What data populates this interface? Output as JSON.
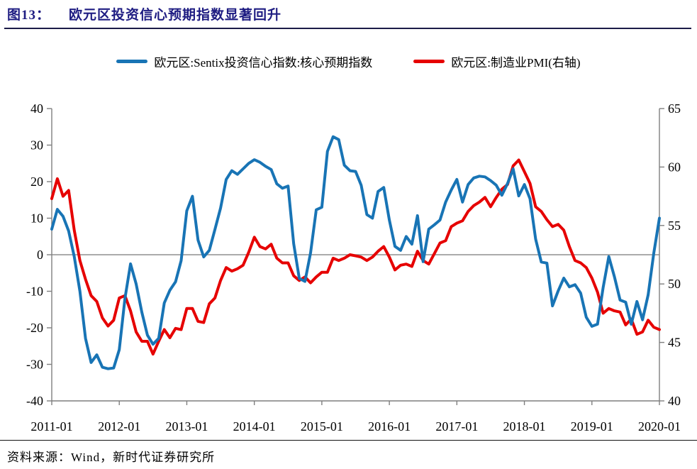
{
  "header": {
    "figure_label": "图13：",
    "title": "欧元区投资信心预期指数显著回升"
  },
  "legend": [
    {
      "label": "欧元区:Sentix投资信心指数:核心预期指数",
      "color": "#1874b5"
    },
    {
      "label": "欧元区:制造业PMI(右轴)",
      "color": "#e60000"
    }
  ],
  "footer": {
    "source": "资料来源：Wind，新时代证券研究所"
  },
  "chart_data": {
    "type": "line",
    "x_interval": "monthly",
    "x_start": "2011-01",
    "x_end": "2020-01",
    "x_tick_labels": [
      "2011-01",
      "2012-01",
      "2013-01",
      "2014-01",
      "2015-01",
      "2016-01",
      "2017-01",
      "2018-01",
      "2019-01",
      "2020-01"
    ],
    "left_axis": {
      "min": -40,
      "max": 40,
      "ticks": [
        40,
        30,
        20,
        10,
        0,
        -10,
        -20,
        -30,
        -40
      ]
    },
    "right_axis": {
      "min": 40,
      "max": 65,
      "ticks": [
        65,
        60,
        55,
        50,
        45,
        40
      ]
    },
    "zero_line_left_value": 0,
    "grid": "zero-line-only",
    "legend_position": "top",
    "axis_color": "#7f7f7f",
    "zero_line_color": "#8f8f8f",
    "series": [
      {
        "name": "欧元区:Sentix投资信心指数:核心预期指数",
        "axis": "left",
        "color": "#1874b5",
        "values": [
          7,
          12.4,
          10.5,
          6.5,
          -0.5,
          -10,
          -22.9,
          -29.5,
          -27.4,
          -30.8,
          -31.2,
          -31,
          -26,
          -12,
          -2.5,
          -8,
          -15.7,
          -22,
          -24.5,
          -22.9,
          -13.2,
          -9.7,
          -7.4,
          -1.6,
          12,
          16,
          4,
          -0.6,
          1.2,
          6.9,
          12.8,
          20.6,
          23,
          22,
          23.5,
          25,
          26,
          25.3,
          24.2,
          23.3,
          19.4,
          18.2,
          18.8,
          3,
          -6.5,
          -7.3,
          0.5,
          12.3,
          13,
          28.3,
          32.3,
          31.5,
          24.5,
          23,
          22.8,
          19,
          11,
          10,
          17.3,
          18.4,
          9.5,
          2.3,
          1.2,
          5,
          2.9,
          10.7,
          -1.9,
          7,
          8.2,
          9.5,
          14.4,
          17.7,
          20.6,
          14.4,
          19.2,
          21,
          21.5,
          21.3,
          20.3,
          19,
          16.3,
          19.5,
          23.5,
          16.1,
          19.2,
          15.3,
          4.3,
          -2,
          -2.3,
          -14,
          -9.9,
          -6.4,
          -8.8,
          -8.2,
          -10.5,
          -17.1,
          -19.6,
          -19,
          -9,
          -0.5,
          -6,
          -12.4,
          -13,
          -19,
          -12.8,
          -17.8,
          -11,
          0.5,
          10
        ]
      },
      {
        "name": "欧元区:制造业PMI(右轴)",
        "axis": "right",
        "color": "#e60000",
        "values": [
          57.3,
          59.0,
          57.5,
          58.0,
          54.6,
          52.0,
          50.4,
          49.0,
          48.5,
          47.1,
          46.4,
          46.9,
          48.8,
          49.0,
          47.7,
          45.9,
          45.1,
          45.1,
          44.0,
          45.1,
          46.1,
          45.4,
          46.2,
          46.1,
          47.9,
          47.9,
          46.8,
          46.7,
          48.3,
          48.8,
          50.3,
          51.4,
          51.1,
          51.3,
          51.6,
          52.7,
          54.0,
          53.2,
          53.0,
          53.4,
          52.2,
          51.8,
          51.8,
          50.7,
          50.3,
          50.6,
          50.1,
          50.6,
          51.0,
          51.0,
          52.2,
          52.0,
          52.2,
          52.5,
          52.4,
          52.3,
          52.0,
          52.3,
          52.8,
          53.2,
          52.3,
          51.2,
          51.6,
          51.7,
          51.5,
          52.8,
          52.0,
          51.7,
          52.6,
          53.5,
          53.7,
          54.9,
          55.2,
          55.4,
          56.2,
          56.7,
          57.0,
          57.4,
          56.6,
          57.4,
          58.1,
          58.5,
          60.1,
          60.6,
          59.6,
          58.6,
          56.6,
          56.2,
          55.5,
          54.9,
          55.1,
          54.6,
          53.2,
          52.0,
          51.8,
          51.4,
          50.5,
          49.3,
          47.5,
          47.9,
          47.7,
          47.6,
          46.5,
          47.0,
          45.7,
          45.9,
          46.9,
          46.3,
          46.1
        ]
      }
    ]
  }
}
